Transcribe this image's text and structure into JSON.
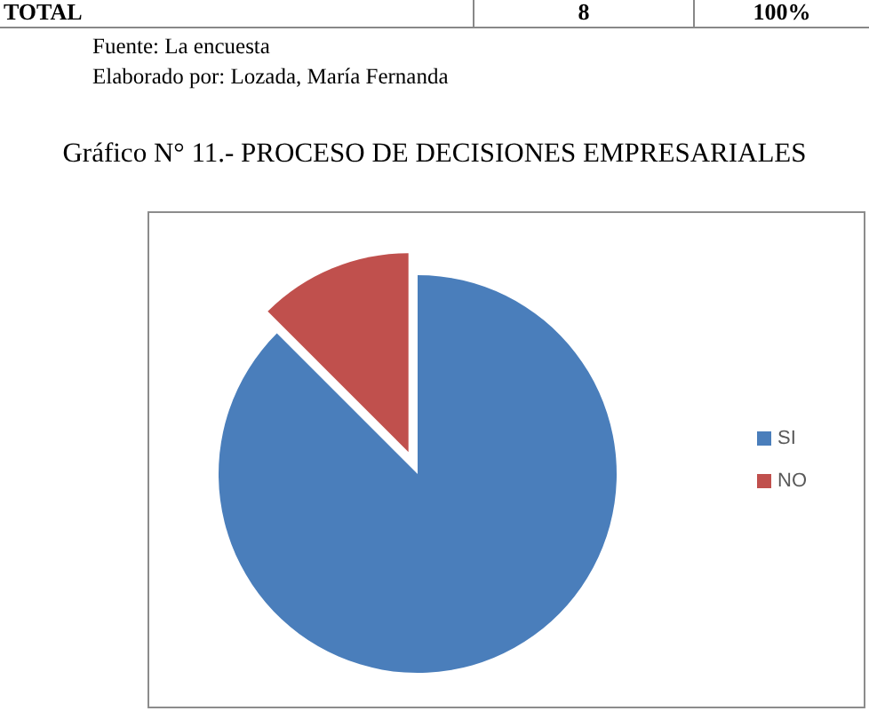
{
  "chart_data": {
    "type": "pie",
    "title": "Gráfico N° 11.- PROCESO DE DECISIONES EMPRESARIALES",
    "categories": [
      "SI",
      "NO"
    ],
    "values": [
      87.5,
      12.5
    ],
    "colors": [
      "#4a7ebb",
      "#c0504d"
    ],
    "legend": "right",
    "annotations": [
      "TOTAL",
      "8",
      "100%",
      "Fuente: La encuesta",
      "Elaborado por: Lozada, María Fernanda"
    ]
  }
}
